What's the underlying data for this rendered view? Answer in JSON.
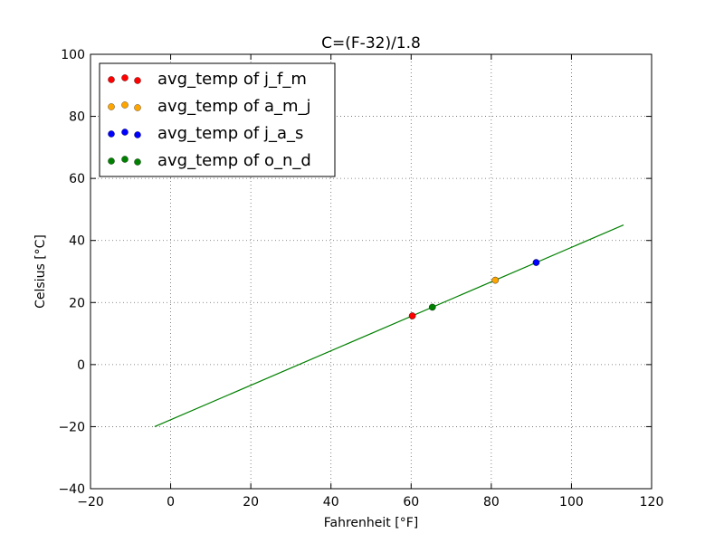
{
  "chart_data": {
    "type": "scatter",
    "title": "C=(F-32)/1.8",
    "xlabel": "Fahrenheit [°F]",
    "ylabel": "Celsius [°C]",
    "xlim": [
      -20,
      120
    ],
    "ylim": [
      -40,
      100
    ],
    "x_ticks": [
      -20,
      0,
      20,
      40,
      60,
      80,
      100,
      120
    ],
    "y_ticks": [
      -40,
      -20,
      0,
      20,
      40,
      60,
      80,
      100
    ],
    "x_tick_labels": [
      "−20",
      "0",
      "20",
      "40",
      "60",
      "80",
      "100",
      "120"
    ],
    "y_tick_labels": [
      "−40",
      "−20",
      "0",
      "20",
      "40",
      "60",
      "80",
      "100"
    ],
    "grid": true,
    "legend_position": "top-left",
    "line": {
      "color": "#008000",
      "x": [
        -4,
        113
      ],
      "y": [
        -20,
        45
      ]
    },
    "series": [
      {
        "name": "avg_temp of j_f_m",
        "color": "#ff0000",
        "x": [
          60.3
        ],
        "y": [
          15.7
        ]
      },
      {
        "name": "avg_temp of a_m_j",
        "color": "#ffa500",
        "x": [
          81.0
        ],
        "y": [
          27.2
        ]
      },
      {
        "name": "avg_temp of j_a_s",
        "color": "#0000ff",
        "x": [
          91.2
        ],
        "y": [
          32.9
        ]
      },
      {
        "name": "avg_temp of o_n_d",
        "color": "#008000",
        "x": [
          65.3
        ],
        "y": [
          18.5
        ]
      }
    ]
  }
}
